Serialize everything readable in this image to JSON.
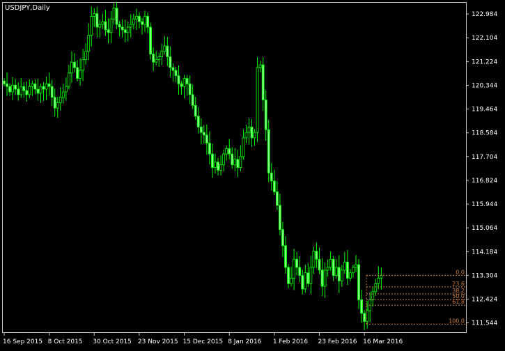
{
  "window": {
    "title": "USDJPY,Daily"
  },
  "colors": {
    "background": "#000000",
    "frame": "#c0c0c0",
    "candle": "#00ff00",
    "candle_alt": "#7fff7f",
    "fib": "#d08040",
    "axis_text": "#ffffff"
  },
  "chart_data": {
    "type": "candlestick",
    "symbol": "USDJPY",
    "timeframe": "Daily",
    "y_ticks": [
      "122.984",
      "122.104",
      "121.224",
      "120.344",
      "119.464",
      "118.584",
      "117.704",
      "116.824",
      "115.944",
      "115.064",
      "114.184",
      "113.304",
      "112.424",
      "111.544"
    ],
    "x_ticks": [
      "16 Sep 2015",
      "8 Oct 2015",
      "30 Oct 2015",
      "23 Nov 2015",
      "15 Dec 2015",
      "8 Jan 2016",
      "1 Feb 2016",
      "23 Feb 2016",
      "16 Mar 2016"
    ],
    "ylim": [
      111.2,
      123.4
    ],
    "x_tick_bars": [
      0,
      16,
      32,
      48,
      64,
      80,
      96,
      112,
      128
    ],
    "closes": [
      120.4,
      120.3,
      120.1,
      120.35,
      120.2,
      120.0,
      120.3,
      120.15,
      120.0,
      120.3,
      120.4,
      120.2,
      120.05,
      120.3,
      120.2,
      120.4,
      120.3,
      119.9,
      119.5,
      119.7,
      119.9,
      120.1,
      120.3,
      120.8,
      121.2,
      121.0,
      120.6,
      120.9,
      121.3,
      121.6,
      122.2,
      122.9,
      123.0,
      122.5,
      122.6,
      122.7,
      122.4,
      122.3,
      122.8,
      123.2,
      122.6,
      122.5,
      122.4,
      122.3,
      122.5,
      122.6,
      122.8,
      122.9,
      122.7,
      122.6,
      122.9,
      122.5,
      121.5,
      121.2,
      121.3,
      121.4,
      121.6,
      121.8,
      121.4,
      121.0,
      120.9,
      120.7,
      120.4,
      120.3,
      120.6,
      120.4,
      120.0,
      119.6,
      119.2,
      118.8,
      118.6,
      118.5,
      118.2,
      117.8,
      117.3,
      117.5,
      117.2,
      117.4,
      117.8,
      118.0,
      117.8,
      117.4,
      117.6,
      117.3,
      117.7,
      118.4,
      118.6,
      118.8,
      118.4,
      118.6,
      121.0,
      121.1,
      119.8,
      118.7,
      117.1,
      116.8,
      116.4,
      115.9,
      115.0,
      114.4,
      113.6,
      113.0,
      113.2,
      113.9,
      113.6,
      113.3,
      112.8,
      113.4,
      113.0,
      113.6,
      114.2,
      113.9,
      113.5,
      112.9,
      113.5,
      113.6,
      113.9,
      113.3,
      113.6,
      113.1,
      113.5,
      113.8,
      113.2,
      113.4,
      113.6,
      113.7,
      112.4,
      111.9,
      111.6,
      112.0,
      112.4,
      112.7,
      113.0,
      113.2,
      113.3
    ],
    "fib_levels": [
      {
        "label": "0.0",
        "price": 113.304
      },
      {
        "label": "23.6",
        "price": 112.88
      },
      {
        "label": "38.2",
        "price": 112.62
      },
      {
        "label": "50.0",
        "price": 112.41
      },
      {
        "label": "61.8",
        "price": 112.2
      },
      {
        "label": "100.0",
        "price": 111.5
      }
    ],
    "grid": false
  }
}
